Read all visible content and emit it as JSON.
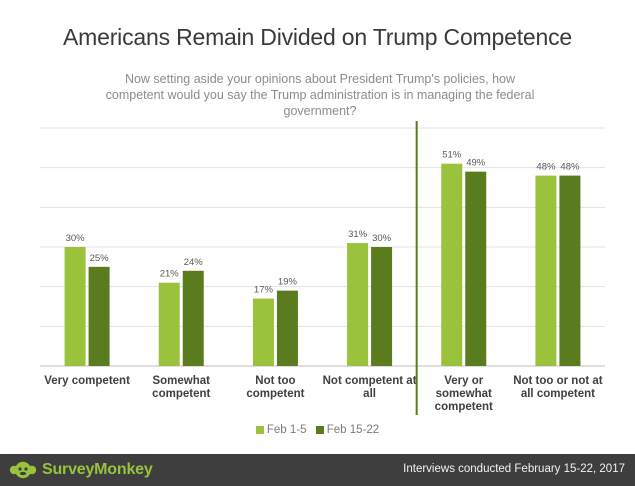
{
  "title": "Americans Remain Divided on Trump Competence",
  "subtitle": "Now setting aside your opinions about President Trump's policies, how competent would you say the Trump administration is in managing the federal government?",
  "brand": "SurveyMonkey",
  "footer_note": "Interviews conducted February 15-22, 2017",
  "colors": {
    "feb_1_5": "#9ac23c",
    "feb_15_22": "#5a7b1e",
    "divider": "#5a7b1e",
    "footer_bg": "#3e3e3e"
  },
  "icons": {
    "logo": "surveymonkey-logo-icon"
  },
  "chart_data": {
    "type": "bar",
    "title": "Americans Remain Divided on Trump Competence",
    "categories": [
      [
        "Very competent"
      ],
      [
        "Somewhat",
        "competent"
      ],
      [
        "Not too",
        "competent"
      ],
      [
        "Not competent at",
        "all"
      ],
      [
        "Very or",
        "somewhat",
        "competent"
      ],
      [
        "Not too or not at",
        "all competent"
      ]
    ],
    "series": [
      {
        "name": "Feb 1-5",
        "values": [
          30,
          21,
          17,
          31,
          51,
          48
        ]
      },
      {
        "name": "Feb 15-22",
        "values": [
          25,
          24,
          19,
          30,
          49,
          48
        ]
      }
    ],
    "data_labels": [
      [
        "30%",
        "21%",
        "17%",
        "31%",
        "51%",
        "48%"
      ],
      [
        "25%",
        "24%",
        "19%",
        "30%",
        "49%",
        "48%"
      ]
    ],
    "ylim": [
      0,
      60
    ],
    "y_gridlines": [
      0,
      10,
      20,
      30,
      40,
      50,
      60
    ],
    "grid": true,
    "y_axis_labels": false,
    "divider_after_category": 3,
    "legend_position": "bottom"
  }
}
